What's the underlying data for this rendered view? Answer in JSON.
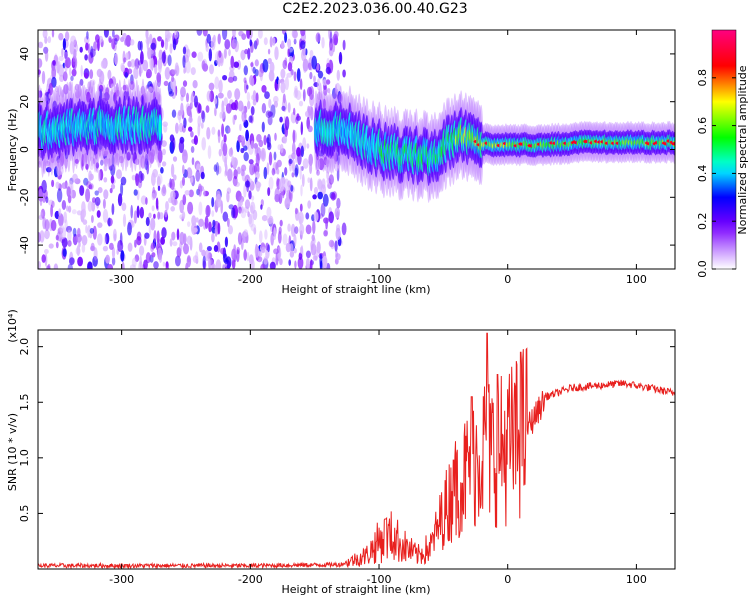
{
  "title": "C2E2.2023.036.00.40.G23",
  "chart_data": [
    {
      "type": "heatmap",
      "title": "C2E2.2023.036.00.40.G23",
      "xlabel": "Height of straight line (km)",
      "ylabel": "Frequency (Hz)",
      "xlim": [
        -365,
        130
      ],
      "ylim": [
        -50,
        50
      ],
      "xticks": [
        -300,
        -200,
        -100,
        0,
        100
      ],
      "yticks": [
        -40,
        -20,
        0,
        20,
        40
      ],
      "colorbar": {
        "label": "Normalized spectral amplitude",
        "range": [
          0,
          1
        ],
        "ticks": [
          0.0,
          0.2,
          0.4,
          0.6,
          0.8
        ],
        "colors": [
          "#ffffff",
          "#7a00ff",
          "#0000ff",
          "#00ffff",
          "#00ff00",
          "#ffff00",
          "#ff0000",
          "#ff0080"
        ]
      },
      "noise_region_x": [
        -365,
        -127
      ],
      "signal_center_track": [
        {
          "x": -360,
          "y": 8
        },
        {
          "x": -330,
          "y": 10
        },
        {
          "x": -300,
          "y": 10
        },
        {
          "x": -280,
          "y": 10
        },
        {
          "x": -145,
          "y": 9
        },
        {
          "x": -125,
          "y": 8
        },
        {
          "x": -110,
          "y": 3
        },
        {
          "x": -95,
          "y": -1
        },
        {
          "x": -80,
          "y": -2
        },
        {
          "x": -65,
          "y": -3
        },
        {
          "x": -55,
          "y": -2
        },
        {
          "x": -45,
          "y": 4
        },
        {
          "x": -35,
          "y": 6
        },
        {
          "x": -25,
          "y": 3
        },
        {
          "x": -15,
          "y": 2
        },
        {
          "x": 0,
          "y": 2
        },
        {
          "x": 30,
          "y": 2
        },
        {
          "x": 60,
          "y": 3
        },
        {
          "x": 90,
          "y": 3
        },
        {
          "x": 130,
          "y": 3
        }
      ]
    },
    {
      "type": "line",
      "xlabel": "Height of straight line (km)",
      "ylabel": "SNR (10 * v/v)",
      "ymultiplier": "(x10⁴)",
      "xlim": [
        -365,
        130
      ],
      "ylim": [
        0,
        2.15
      ],
      "xticks": [
        -300,
        -200,
        -100,
        0,
        100
      ],
      "yticks": [
        0.5,
        1.0,
        1.5,
        2.0
      ],
      "ytick_labels": [
        "0.5",
        "1.0",
        "1.5",
        "2.0"
      ],
      "series": [
        {
          "color": "#e8201e",
          "points": [
            {
              "x": -365,
              "y": 0.03
            },
            {
              "x": -300,
              "y": 0.03
            },
            {
              "x": -200,
              "y": 0.03
            },
            {
              "x": -130,
              "y": 0.04
            },
            {
              "x": -110,
              "y": 0.12
            },
            {
              "x": -100,
              "y": 0.25
            },
            {
              "x": -90,
              "y": 0.3
            },
            {
              "x": -80,
              "y": 0.2
            },
            {
              "x": -70,
              "y": 0.12
            },
            {
              "x": -60,
              "y": 0.2
            },
            {
              "x": -50,
              "y": 0.5
            },
            {
              "x": -40,
              "y": 0.75
            },
            {
              "x": -30,
              "y": 0.9
            },
            {
              "x": -25,
              "y": 1.0
            },
            {
              "x": -20,
              "y": 1.1
            },
            {
              "x": -10,
              "y": 1.05
            },
            {
              "x": 0,
              "y": 1.1
            },
            {
              "x": 10,
              "y": 1.2
            },
            {
              "x": 20,
              "y": 1.35
            },
            {
              "x": 30,
              "y": 1.55
            },
            {
              "x": 50,
              "y": 1.63
            },
            {
              "x": 70,
              "y": 1.65
            },
            {
              "x": 90,
              "y": 1.67
            },
            {
              "x": 110,
              "y": 1.63
            },
            {
              "x": 130,
              "y": 1.58
            }
          ],
          "spikes": [
            {
              "x": -28,
              "y": 1.55
            },
            {
              "x": -16,
              "y": 2.12
            },
            {
              "x": -8,
              "y": 1.75
            },
            {
              "x": 10,
              "y": 1.95
            },
            {
              "x": -42,
              "y": 0.98
            },
            {
              "x": -95,
              "y": 0.45
            }
          ]
        }
      ]
    }
  ]
}
